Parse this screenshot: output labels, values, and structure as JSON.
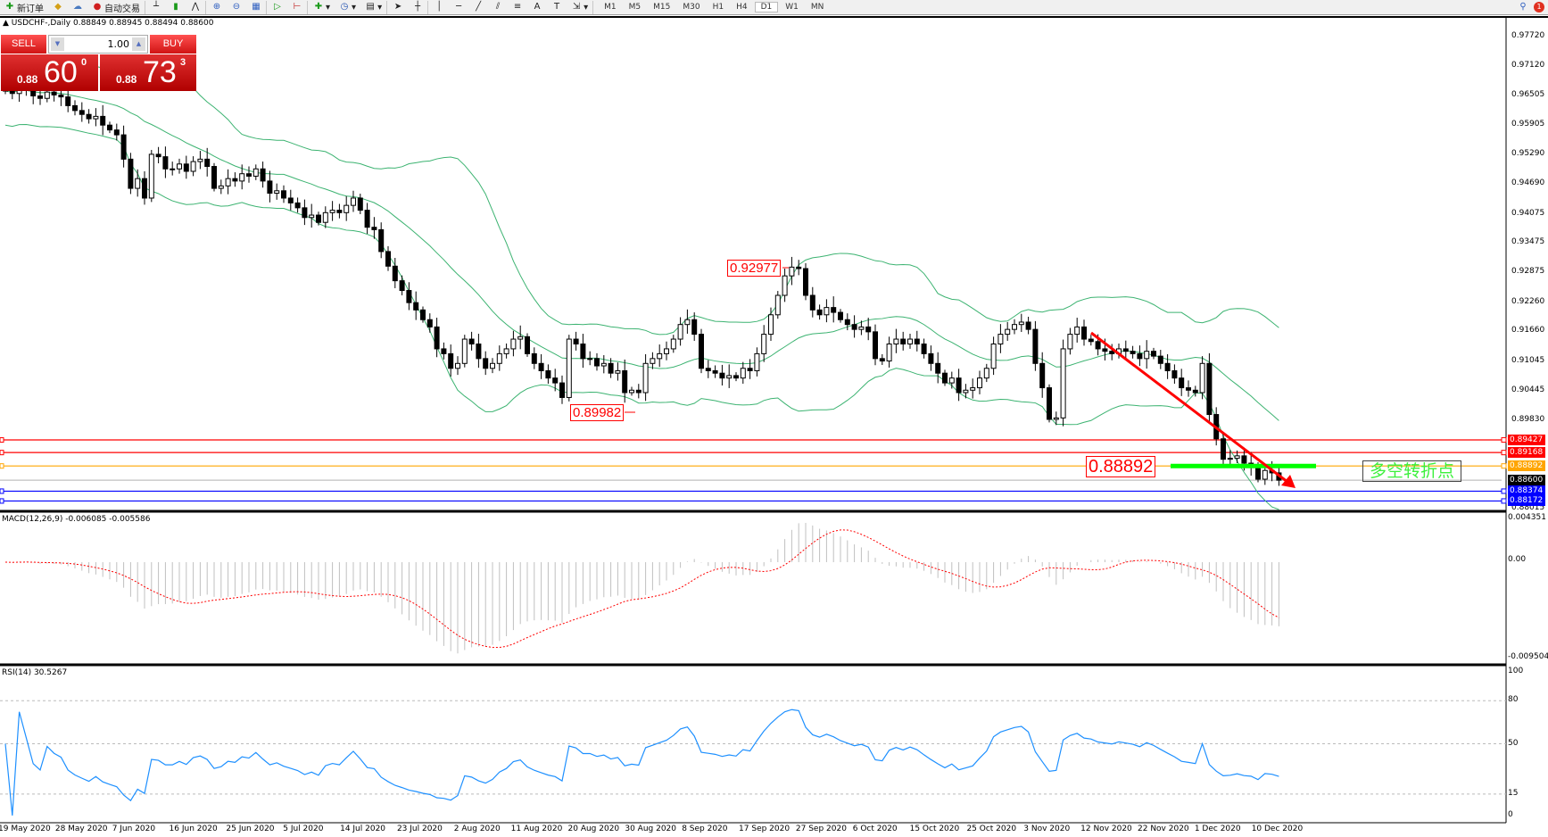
{
  "toolbar": {
    "new_order": "新订单",
    "auto_trading": "自动交易",
    "timeframes": [
      "M1",
      "M5",
      "M15",
      "M30",
      "H1",
      "H4",
      "D1",
      "W1",
      "MN"
    ],
    "active_timeframe": "D1",
    "notification_count": "1"
  },
  "chart": {
    "title": "USDCHF-,Daily  0.88849 0.88945 0.88494 0.88600"
  },
  "trade_panel": {
    "sell_label": "SELL",
    "buy_label": "BUY",
    "lot": "1.00",
    "sell_small": "0.88",
    "sell_big": "60",
    "sell_pip": "0",
    "buy_small": "0.88",
    "buy_big": "73",
    "buy_pip": "3"
  },
  "price_axis": [
    "0.97720",
    "0.97120",
    "0.96505",
    "0.95905",
    "0.95290",
    "0.94690",
    "0.94075",
    "0.93475",
    "0.92875",
    "0.92260",
    "0.91660",
    "0.91045",
    "0.90445",
    "0.89830",
    "0.88015"
  ],
  "hlines": [
    {
      "price": "0.89427",
      "color": "#ff0000"
    },
    {
      "price": "0.89168",
      "color": "#ff0000"
    },
    {
      "price": "0.88892",
      "color": "#ffa500"
    },
    {
      "price": "0.88600",
      "color": "#000000",
      "line": "#c0c0c0"
    },
    {
      "price": "0.88374",
      "color": "#0000ff"
    },
    {
      "price": "0.88172",
      "color": "#0000ff"
    }
  ],
  "annotations": {
    "high": "0.92977",
    "low": "0.89982",
    "pivot": "0.88892",
    "pivot_text": "多空转折点"
  },
  "macd": {
    "label": "MACD(12,26,9) -0.006085 -0.005586",
    "axis": [
      "0.004351",
      "0.00",
      "-0.009504"
    ],
    "range": [
      -0.009504,
      0.004351
    ]
  },
  "rsi": {
    "label": "RSI(14) 30.5267",
    "axis": [
      "100",
      "80",
      "50",
      "15",
      "0"
    ],
    "levels": [
      80,
      50,
      15
    ]
  },
  "dates": [
    "19 May 2020",
    "28 May 2020",
    "7 Jun 2020",
    "16 Jun 2020",
    "25 Jun 2020",
    "5 Jul 2020",
    "14 Jul 2020",
    "23 Jul 2020",
    "2 Aug 2020",
    "11 Aug 2020",
    "20 Aug 2020",
    "30 Aug 2020",
    "8 Sep 2020",
    "17 Sep 2020",
    "27 Sep 2020",
    "6 Oct 2020",
    "15 Oct 2020",
    "25 Oct 2020",
    "3 Nov 2020",
    "12 Nov 2020",
    "22 Nov 2020",
    "1 Dec 2020",
    "10 Dec 2020"
  ],
  "chart_data": {
    "type": "candlestick",
    "symbol": "USDCHF",
    "timeframe": "Daily",
    "ylim": [
      0.88015,
      0.9772
    ],
    "indicators": [
      "Bollinger Bands(20,2)",
      "MACD(12,26,9)",
      "RSI(14)"
    ],
    "closes": [
      0.966,
      0.9655,
      0.9668,
      0.9662,
      0.965,
      0.9645,
      0.9658,
      0.9652,
      0.9648,
      0.963,
      0.962,
      0.9612,
      0.9603,
      0.9608,
      0.959,
      0.958,
      0.957,
      0.952,
      0.946,
      0.948,
      0.944,
      0.953,
      0.9525,
      0.95,
      0.95,
      0.951,
      0.9495,
      0.9515,
      0.952,
      0.9505,
      0.946,
      0.9465,
      0.948,
      0.9475,
      0.949,
      0.9485,
      0.95,
      0.9475,
      0.945,
      0.9455,
      0.944,
      0.943,
      0.942,
      0.94,
      0.9405,
      0.939,
      0.941,
      0.9415,
      0.941,
      0.9425,
      0.944,
      0.9415,
      0.938,
      0.9375,
      0.933,
      0.93,
      0.927,
      0.925,
      0.9225,
      0.921,
      0.919,
      0.9175,
      0.913,
      0.912,
      0.909,
      0.91,
      0.915,
      0.914,
      0.911,
      0.909,
      0.91,
      0.912,
      0.913,
      0.915,
      0.9155,
      0.912,
      0.91,
      0.9085,
      0.907,
      0.906,
      0.903,
      0.915,
      0.914,
      0.911,
      0.911,
      0.9095,
      0.91,
      0.908,
      0.9085,
      0.904,
      0.9045,
      0.904,
      0.91,
      0.911,
      0.912,
      0.913,
      0.915,
      0.918,
      0.919,
      0.916,
      0.909,
      0.9085,
      0.908,
      0.907,
      0.9075,
      0.907,
      0.909,
      0.9085,
      0.912,
      0.916,
      0.92,
      0.924,
      0.928,
      0.9298,
      0.9295,
      0.924,
      0.921,
      0.92,
      0.9215,
      0.9205,
      0.919,
      0.918,
      0.917,
      0.9175,
      0.9165,
      0.911,
      0.9105,
      0.914,
      0.915,
      0.914,
      0.915,
      0.914,
      0.912,
      0.91,
      0.908,
      0.906,
      0.907,
      0.904,
      0.9045,
      0.905,
      0.907,
      0.909,
      0.914,
      0.916,
      0.917,
      0.918,
      0.9185,
      0.917,
      0.91,
      0.905,
      0.8985,
      0.8988,
      0.913,
      0.916,
      0.9175,
      0.915,
      0.9145,
      0.913,
      0.9125,
      0.912,
      0.913,
      0.9125,
      0.912,
      0.911,
      0.9125,
      0.9115,
      0.91,
      0.9085,
      0.907,
      0.905,
      0.9045,
      0.904,
      0.91,
      0.8995,
      0.8945,
      0.8903,
      0.8905,
      0.891,
      0.8895,
      0.889,
      0.8862,
      0.888,
      0.8875,
      0.886
    ],
    "colors": {
      "bands": "#3cb371",
      "macd_hist": "#c0c0c0",
      "macd_signal": "#ff0000",
      "rsi": "#1e90ff",
      "trend_arrow": "#ff0000",
      "pivot_line": "#00ff00"
    }
  }
}
